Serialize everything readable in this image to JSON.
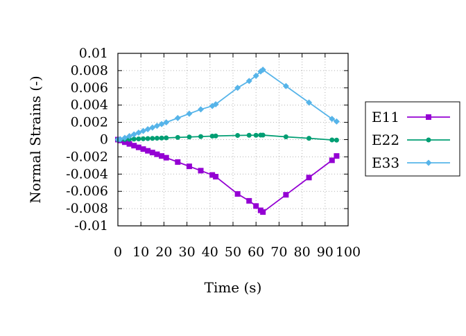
{
  "chart_data": {
    "type": "line",
    "title": "",
    "xlabel": "Time (s)",
    "ylabel": "Normal Strains (-)",
    "xlim": [
      0,
      100
    ],
    "ylim": [
      -0.01,
      0.01
    ],
    "x_ticks": [
      "0",
      "10",
      "20",
      "30",
      "40",
      "50",
      "60",
      "70",
      "80",
      "90",
      "100"
    ],
    "y_ticks": [
      "0.01",
      "0.008",
      "0.006",
      "0.004",
      "0.002",
      "0",
      "-0.002",
      "-0.004",
      "-0.006",
      "-0.008",
      "-0.01"
    ],
    "grid": true,
    "legend_position": "right",
    "x": [
      0,
      1,
      3,
      5,
      7,
      9,
      11,
      13,
      15,
      17,
      19,
      21,
      26,
      31,
      36,
      41,
      42.5,
      52,
      57,
      60,
      62,
      63,
      73,
      83,
      93,
      95
    ],
    "series": [
      {
        "name": "E11",
        "color": "#9400d3",
        "marker": "square",
        "values": [
          0,
          -0.0001,
          -0.0003,
          -0.0005,
          -0.0007,
          -0.0009,
          -0.0011,
          -0.0013,
          -0.0015,
          -0.0017,
          -0.0019,
          -0.0021,
          -0.0026,
          -0.0031,
          -0.0036,
          -0.0041,
          -0.0043,
          -0.0063,
          -0.0071,
          -0.0077,
          -0.0082,
          -0.0084,
          -0.0064,
          -0.0044,
          -0.0024,
          -0.0019
        ]
      },
      {
        "name": "E22",
        "color": "#009e73",
        "marker": "circle",
        "values": [
          0,
          0,
          2e-05,
          4e-05,
          6e-05,
          8e-05,
          0.0001,
          0.00012,
          0.00014,
          0.00016,
          0.00018,
          0.0002,
          0.00025,
          0.0003,
          0.00035,
          0.0004,
          0.00042,
          0.00048,
          0.0005,
          0.0005,
          0.00052,
          0.00052,
          0.00032,
          0.00015,
          -4e-05,
          -6e-05
        ]
      },
      {
        "name": "E33",
        "color": "#56b4e9",
        "marker": "diamond",
        "values": [
          0,
          5e-05,
          0.0002,
          0.0004,
          0.0006,
          0.0008,
          0.001,
          0.0012,
          0.0014,
          0.0016,
          0.0018,
          0.002,
          0.0025,
          0.003,
          0.0035,
          0.0039,
          0.0041,
          0.006,
          0.0068,
          0.0074,
          0.0079,
          0.0081,
          0.0062,
          0.0043,
          0.0024,
          0.0021
        ]
      }
    ]
  }
}
